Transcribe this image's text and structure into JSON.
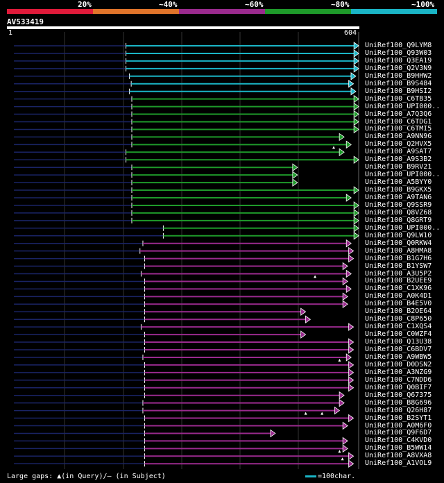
{
  "legend": {
    "colors": [
      "#e01a3a",
      "#e0742a",
      "#9a2a8e",
      "#1e9a2a",
      "#1ab5c6"
    ],
    "labels": [
      "20%",
      "~40%",
      "~60%",
      "~80%",
      "~100%"
    ]
  },
  "query": {
    "name": "AV533419",
    "start": "1",
    "end": "604",
    "length": 604
  },
  "footer": {
    "gaps_text": "Large gaps: ▲(in Query)/— (in Subject)",
    "scale_text": "=100char."
  },
  "hits": [
    {
      "label": "UniRef100_Q9LYM8",
      "identity": 5,
      "qstart": 204,
      "qend": 603,
      "sstart": 12,
      "gaps": []
    },
    {
      "label": "UniRef100_Q93W03",
      "identity": 5,
      "qstart": 204,
      "qend": 603,
      "sstart": 12,
      "gaps": []
    },
    {
      "label": "UniRef100_Q3EA19",
      "identity": 5,
      "qstart": 204,
      "qend": 603,
      "sstart": 12,
      "gaps": []
    },
    {
      "label": "UniRef100_Q2V3N9",
      "identity": 5,
      "qstart": 204,
      "qend": 603,
      "sstart": 12,
      "gaps": []
    },
    {
      "label": "UniRef100_B9HHW2",
      "identity": 5,
      "qstart": 210,
      "qend": 598,
      "sstart": 12,
      "gaps": []
    },
    {
      "label": "UniRef100_B9S484",
      "identity": 5,
      "qstart": 213,
      "qend": 594,
      "sstart": 12,
      "gaps": []
    },
    {
      "label": "UniRef100_B9HSI2",
      "identity": 5,
      "qstart": 210,
      "qend": 598,
      "sstart": 12,
      "gaps": []
    },
    {
      "label": "UniRef100_C6TB35",
      "identity": 4,
      "qstart": 214,
      "qend": 603,
      "sstart": 12,
      "gaps": []
    },
    {
      "label": "UniRef100_UPI000..",
      "identity": 4,
      "qstart": 214,
      "qend": 603,
      "sstart": 12,
      "gaps": []
    },
    {
      "label": "UniRef100_A7Q3Q6",
      "identity": 4,
      "qstart": 214,
      "qend": 603,
      "sstart": 12,
      "gaps": []
    },
    {
      "label": "UniRef100_C6TDG1",
      "identity": 4,
      "qstart": 214,
      "qend": 603,
      "sstart": 12,
      "gaps": []
    },
    {
      "label": "UniRef100_C6TMI5",
      "identity": 4,
      "qstart": 214,
      "qend": 603,
      "sstart": 12,
      "gaps": []
    },
    {
      "label": "UniRef100_A9NN96",
      "identity": 4,
      "qstart": 214,
      "qend": 578,
      "sstart": 12,
      "gaps": []
    },
    {
      "label": "UniRef100_Q2HVX5",
      "identity": 4,
      "qstart": 214,
      "qend": 590,
      "sstart": 12,
      "gaps": [
        560
      ]
    },
    {
      "label": "UniRef100_A9SAT7",
      "identity": 4,
      "qstart": 204,
      "qend": 578,
      "sstart": 12,
      "gaps": []
    },
    {
      "label": "UniRef100_A9S3B2",
      "identity": 4,
      "qstart": 204,
      "qend": 603,
      "sstart": 12,
      "gaps": []
    },
    {
      "label": "UniRef100_B9RV21",
      "identity": 4,
      "qstart": 214,
      "qend": 498,
      "sstart": 12,
      "gaps": []
    },
    {
      "label": "UniRef100_UPI000..",
      "identity": 4,
      "qstart": 214,
      "qend": 498,
      "sstart": 12,
      "gaps": []
    },
    {
      "label": "UniRef100_A5BYY0",
      "identity": 4,
      "qstart": 214,
      "qend": 498,
      "sstart": 12,
      "gaps": []
    },
    {
      "label": "UniRef100_B9GKX5",
      "identity": 4,
      "qstart": 214,
      "qend": 603,
      "sstart": 12,
      "gaps": []
    },
    {
      "label": "UniRef100_A9TAN6",
      "identity": 4,
      "qstart": 214,
      "qend": 590,
      "sstart": 12,
      "gaps": []
    },
    {
      "label": "UniRef100_Q9SSR9",
      "identity": 4,
      "qstart": 214,
      "qend": 603,
      "sstart": 12,
      "gaps": []
    },
    {
      "label": "UniRef100_Q8VZ68",
      "identity": 4,
      "qstart": 214,
      "qend": 603,
      "sstart": 12,
      "gaps": []
    },
    {
      "label": "UniRef100_Q8GRT9",
      "identity": 4,
      "qstart": 214,
      "qend": 603,
      "sstart": 12,
      "gaps": []
    },
    {
      "label": "UniRef100_UPI000..",
      "identity": 4,
      "qstart": 268,
      "qend": 603,
      "sstart": 12,
      "gaps": []
    },
    {
      "label": "UniRef100_Q9LW10",
      "identity": 4,
      "qstart": 268,
      "qend": 603,
      "sstart": 12,
      "gaps": []
    },
    {
      "label": "UniRef100_Q0RKW4",
      "identity": 3,
      "qstart": 233,
      "qend": 590,
      "sstart": 12,
      "gaps": []
    },
    {
      "label": "UniRef100_A8HMA8",
      "identity": 3,
      "qstart": 228,
      "qend": 594,
      "sstart": 12,
      "gaps": []
    },
    {
      "label": "UniRef100_B1G7H6",
      "identity": 3,
      "qstart": 236,
      "qend": 594,
      "sstart": 12,
      "gaps": []
    },
    {
      "label": "UniRef100_B1YSW7",
      "identity": 3,
      "qstart": 236,
      "qend": 584,
      "sstart": 12,
      "gaps": []
    },
    {
      "label": "UniRef100_A3U5P2",
      "identity": 3,
      "qstart": 230,
      "qend": 590,
      "sstart": 12,
      "gaps": [
        528
      ]
    },
    {
      "label": "UniRef100_B2UEE9",
      "identity": 3,
      "qstart": 236,
      "qend": 584,
      "sstart": 12,
      "gaps": []
    },
    {
      "label": "UniRef100_C1XK96",
      "identity": 3,
      "qstart": 236,
      "qend": 590,
      "sstart": 12,
      "gaps": []
    },
    {
      "label": "UniRef100_A0K4D1",
      "identity": 3,
      "qstart": 236,
      "qend": 584,
      "sstart": 12,
      "gaps": []
    },
    {
      "label": "UniRef100_B4E5V0",
      "identity": 3,
      "qstart": 236,
      "qend": 584,
      "sstart": 12,
      "gaps": []
    },
    {
      "label": "UniRef100_B2OE64",
      "identity": 3,
      "qstart": 236,
      "qend": 512,
      "sstart": 12,
      "gaps": []
    },
    {
      "label": "UniRef100_C8P650",
      "identity": 3,
      "qstart": 236,
      "qend": 520,
      "sstart": 12,
      "gaps": []
    },
    {
      "label": "UniRef100_C1XQS4",
      "identity": 3,
      "qstart": 230,
      "qend": 594,
      "sstart": 12,
      "gaps": []
    },
    {
      "label": "UniRef100_C0WZF4",
      "identity": 3,
      "qstart": 236,
      "qend": 512,
      "sstart": 12,
      "gaps": []
    },
    {
      "label": "UniRef100_Q13U38",
      "identity": 3,
      "qstart": 236,
      "qend": 594,
      "sstart": 12,
      "gaps": []
    },
    {
      "label": "UniRef100_C6BDV7",
      "identity": 3,
      "qstart": 236,
      "qend": 594,
      "sstart": 12,
      "gaps": []
    },
    {
      "label": "UniRef100_A9WBW5",
      "identity": 3,
      "qstart": 233,
      "qend": 590,
      "sstart": 12,
      "gaps": [
        570
      ]
    },
    {
      "label": "UniRef100_D0DSN2",
      "identity": 3,
      "qstart": 236,
      "qend": 594,
      "sstart": 12,
      "gaps": []
    },
    {
      "label": "UniRef100_A3NZG9",
      "identity": 3,
      "qstart": 236,
      "qend": 594,
      "sstart": 12,
      "gaps": []
    },
    {
      "label": "UniRef100_C7NDD6",
      "identity": 3,
      "qstart": 236,
      "qend": 594,
      "sstart": 12,
      "gaps": []
    },
    {
      "label": "UniRef100_Q0BIF7",
      "identity": 3,
      "qstart": 236,
      "qend": 594,
      "sstart": 12,
      "gaps": []
    },
    {
      "label": "UniRef100_Q67375",
      "identity": 3,
      "qstart": 236,
      "qend": 578,
      "sstart": 12,
      "gaps": []
    },
    {
      "label": "UniRef100_B8G696",
      "identity": 3,
      "qstart": 233,
      "qend": 578,
      "sstart": 12,
      "gaps": []
    },
    {
      "label": "UniRef100_Q26H87",
      "identity": 3,
      "qstart": 233,
      "qend": 570,
      "sstart": 12,
      "gaps": [
        512,
        540
      ]
    },
    {
      "label": "UniRef100_B2SYT1",
      "identity": 3,
      "qstart": 236,
      "qend": 594,
      "sstart": 12,
      "gaps": []
    },
    {
      "label": "UniRef100_A0M6F0",
      "identity": 3,
      "qstart": 236,
      "qend": 584,
      "sstart": 12,
      "gaps": []
    },
    {
      "label": "UniRef100_Q9F6D7",
      "identity": 3,
      "qstart": 236,
      "qend": 460,
      "sstart": 12,
      "gaps": []
    },
    {
      "label": "UniRef100_C4KVD0",
      "identity": 3,
      "qstart": 236,
      "qend": 584,
      "sstart": 12,
      "gaps": []
    },
    {
      "label": "UniRef100_B5WW14",
      "identity": 3,
      "qstart": 236,
      "qend": 584,
      "sstart": 12,
      "gaps": [
        570
      ]
    },
    {
      "label": "UniRef100_A8VXA8",
      "identity": 3,
      "qstart": 236,
      "qend": 594,
      "sstart": 12,
      "gaps": [
        575
      ]
    },
    {
      "label": "UniRef100_A1VOL9",
      "identity": 3,
      "qstart": 236,
      "qend": 594,
      "sstart": 12,
      "gaps": []
    }
  ]
}
